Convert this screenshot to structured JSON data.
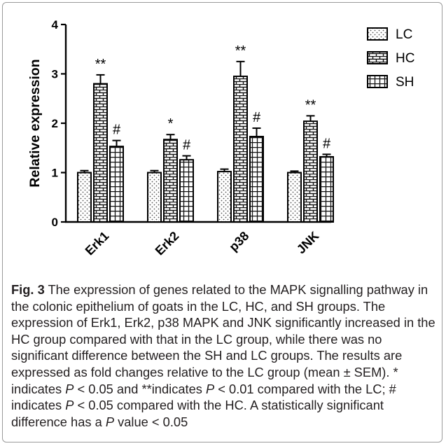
{
  "chart_data": {
    "type": "bar",
    "ylabel": "Relative expression",
    "xlabel": "",
    "ylim": [
      0,
      4
    ],
    "yticks": [
      "0",
      "1",
      "2",
      "3",
      "4"
    ],
    "categories": [
      "Erk1",
      "Erk2",
      "p38",
      "JNK"
    ],
    "series": [
      {
        "name": "LC",
        "values": [
          1.0,
          1.0,
          1.02,
          1.0
        ],
        "errors": [
          0.04,
          0.04,
          0.05,
          0.03
        ],
        "pattern": "dots",
        "marks": [
          "",
          "",
          "",
          ""
        ]
      },
      {
        "name": "HC",
        "values": [
          2.8,
          1.67,
          2.95,
          2.04
        ],
        "errors": [
          0.18,
          0.1,
          0.3,
          0.11
        ],
        "pattern": "brick",
        "marks": [
          "**",
          "*",
          "**",
          "**"
        ]
      },
      {
        "name": "SH",
        "values": [
          1.53,
          1.26,
          1.73,
          1.32
        ],
        "errors": [
          0.12,
          0.08,
          0.17,
          0.05
        ],
        "pattern": "grid",
        "marks": [
          "#",
          "#",
          "#",
          "#"
        ]
      }
    ],
    "legend_position": "top-right",
    "grid": false
  },
  "caption": {
    "label": "Fig. 3",
    "t1": " The expression of genes related to the MAPK signalling pathway in the colonic epithelium of goats in the LC, HC, and SH groups. The expression of Erk1, Erk2, p38 MAPK and JNK significantly increased in the HC group compared with that in the LC group, while there was no significant difference between the SH and LC groups. The results are expressed as fold changes relative to the LC group (mean ± SEM). * indicates ",
    "p1": "P",
    "t2": " < 0.05 and **indicates ",
    "p2": "P",
    "t3": " < 0.01 compared with the LC; # indicates ",
    "p3": "P",
    "t4": " < 0.05 compared with the HC. A statistically significant difference has a ",
    "p4": "P",
    "t5": " value < 0.05"
  }
}
